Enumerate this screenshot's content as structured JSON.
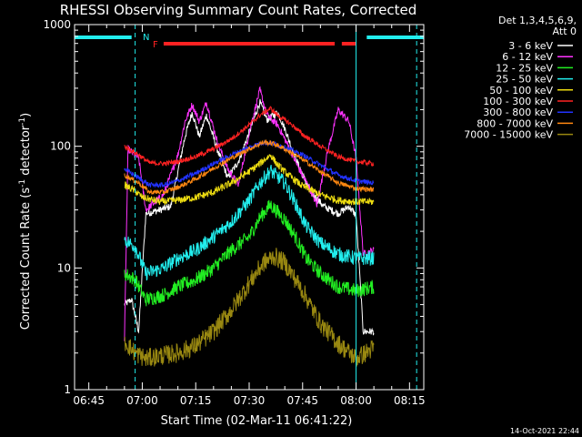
{
  "chart_data": {
    "type": "line",
    "title": "RHESSI Observing Summary Count Rates, Corrected",
    "xlabel": "Start Time (02-Mar-11 06:41:22)",
    "ylabel": "Corrected Count Rate (s⁻¹ detector⁻¹)",
    "ylabel_main": "Corrected Count Rate (s",
    "ylabel_sup1": "-1",
    "ylabel_mid": " detector",
    "ylabel_sup2": "-1",
    "ylabel_end": ")",
    "y_scale": "log",
    "ylim": [
      1,
      1000
    ],
    "xlim": [
      "06:41",
      "08:19"
    ],
    "x_ticks": [
      "06:45",
      "07:00",
      "07:15",
      "07:30",
      "07:45",
      "08:00",
      "08:15"
    ],
    "y_ticks": [
      "1",
      "10",
      "100",
      "1000"
    ],
    "footer": "14-Oct-2021 22:44",
    "legend": {
      "header": [
        "Det 1,3,4,5,6,9,",
        "Att 0"
      ],
      "placement": "right",
      "entries": [
        {
          "label": "3 - 6 keV",
          "color": "#ffffff"
        },
        {
          "label": "6 - 12 keV",
          "color": "#ff33ff"
        },
        {
          "label": "12 - 25 keV",
          "color": "#22ee22"
        },
        {
          "label": "25 - 50 keV",
          "color": "#22eeee"
        },
        {
          "label": "50 - 100 keV",
          "color": "#eedd11"
        },
        {
          "label": "100 - 300 keV",
          "color": "#ff2222"
        },
        {
          "label": "300 - 800 keV",
          "color": "#2233ff"
        },
        {
          "label": "800 - 7000 keV",
          "color": "#ff8811"
        },
        {
          "label": "7000 - 15000 keV",
          "color": "#998811"
        }
      ]
    },
    "annotations": {
      "N": {
        "label": "N",
        "color": "#22eeee"
      },
      "F": {
        "label": "F",
        "color": "#ff2222"
      }
    },
    "night_bars": [
      [
        "06:41",
        "06:57"
      ],
      [
        "08:03",
        "08:19"
      ]
    ],
    "flare_bars": [
      [
        "07:06",
        "07:54"
      ],
      [
        "07:56",
        "08:00"
      ]
    ],
    "night_vlines": [
      "06:41",
      "06:58",
      "08:00",
      "08:17"
    ],
    "series": [
      {
        "name": "3 - 6 keV",
        "color": "#ffffff",
        "noise": 0.03,
        "points": [
          [
            "06:55",
            5
          ],
          [
            "06:57",
            5.5
          ],
          [
            "06:59",
            3
          ],
          [
            "07:01",
            28
          ],
          [
            "07:05",
            30
          ],
          [
            "07:08",
            32
          ],
          [
            "07:12",
            120
          ],
          [
            "07:14",
            190
          ],
          [
            "07:16",
            120
          ],
          [
            "07:18",
            180
          ],
          [
            "07:21",
            95
          ],
          [
            "07:24",
            55
          ],
          [
            "07:27",
            75
          ],
          [
            "07:30",
            130
          ],
          [
            "07:33",
            230
          ],
          [
            "07:35",
            165
          ],
          [
            "07:38",
            190
          ],
          [
            "07:40",
            140
          ],
          [
            "07:43",
            80
          ],
          [
            "07:46",
            50
          ],
          [
            "07:48",
            40
          ],
          [
            "07:51",
            32
          ],
          [
            "07:55",
            28
          ],
          [
            "07:58",
            32
          ],
          [
            "08:00",
            27
          ],
          [
            "08:02",
            3
          ],
          [
            "08:05",
            3
          ]
        ]
      },
      {
        "name": "6 - 12 keV",
        "color": "#ff33ff",
        "noise": 0.03,
        "points": [
          [
            "06:55",
            2.5
          ],
          [
            "06:56",
            95
          ],
          [
            "06:59",
            80
          ],
          [
            "07:01",
            30
          ],
          [
            "07:06",
            40
          ],
          [
            "07:10",
            85
          ],
          [
            "07:12",
            160
          ],
          [
            "07:14",
            220
          ],
          [
            "07:16",
            160
          ],
          [
            "07:18",
            230
          ],
          [
            "07:21",
            110
          ],
          [
            "07:24",
            65
          ],
          [
            "07:27",
            48
          ],
          [
            "07:30",
            130
          ],
          [
            "07:33",
            290
          ],
          [
            "07:35",
            180
          ],
          [
            "07:38",
            150
          ],
          [
            "07:41",
            100
          ],
          [
            "07:44",
            65
          ],
          [
            "07:47",
            45
          ],
          [
            "07:49",
            33
          ],
          [
            "07:52",
            90
          ],
          [
            "07:55",
            200
          ],
          [
            "07:58",
            160
          ],
          [
            "08:00",
            80
          ],
          [
            "08:02",
            13
          ],
          [
            "08:05",
            14
          ]
        ]
      },
      {
        "name": "12 - 25 keV",
        "color": "#22ee22",
        "noise": 0.06,
        "points": [
          [
            "06:55",
            9
          ],
          [
            "06:58",
            8
          ],
          [
            "07:01",
            5.5
          ],
          [
            "07:06",
            6
          ],
          [
            "07:10",
            7
          ],
          [
            "07:15",
            8
          ],
          [
            "07:20",
            10
          ],
          [
            "07:25",
            14
          ],
          [
            "07:30",
            18
          ],
          [
            "07:33",
            26
          ],
          [
            "07:36",
            33
          ],
          [
            "07:40",
            25
          ],
          [
            "07:43",
            18
          ],
          [
            "07:46",
            12
          ],
          [
            "07:50",
            9
          ],
          [
            "07:55",
            7
          ],
          [
            "08:00",
            6.5
          ],
          [
            "08:05",
            7
          ]
        ]
      },
      {
        "name": "25 - 50 keV",
        "color": "#22eeee",
        "noise": 0.06,
        "points": [
          [
            "06:55",
            17
          ],
          [
            "06:58",
            15
          ],
          [
            "07:01",
            9
          ],
          [
            "07:06",
            10
          ],
          [
            "07:10",
            12
          ],
          [
            "07:15",
            14
          ],
          [
            "07:20",
            18
          ],
          [
            "07:25",
            24
          ],
          [
            "07:30",
            36
          ],
          [
            "07:33",
            50
          ],
          [
            "07:36",
            63
          ],
          [
            "07:40",
            50
          ],
          [
            "07:43",
            34
          ],
          [
            "07:46",
            22
          ],
          [
            "07:50",
            16
          ],
          [
            "07:55",
            13
          ],
          [
            "08:00",
            12
          ],
          [
            "08:05",
            12
          ]
        ]
      },
      {
        "name": "50 - 100 keV",
        "color": "#eedd11",
        "noise": 0.03,
        "points": [
          [
            "06:55",
            48
          ],
          [
            "06:58",
            43
          ],
          [
            "07:00",
            38
          ],
          [
            "07:05",
            35
          ],
          [
            "07:10",
            36
          ],
          [
            "07:15",
            38
          ],
          [
            "07:20",
            42
          ],
          [
            "07:25",
            50
          ],
          [
            "07:30",
            62
          ],
          [
            "07:33",
            72
          ],
          [
            "07:36",
            85
          ],
          [
            "07:38",
            70
          ],
          [
            "07:41",
            58
          ],
          [
            "07:45",
            47
          ],
          [
            "07:50",
            40
          ],
          [
            "07:55",
            36
          ],
          [
            "08:00",
            35
          ],
          [
            "08:05",
            35
          ]
        ]
      },
      {
        "name": "100 - 300 keV",
        "color": "#ff2222",
        "noise": 0.02,
        "points": [
          [
            "06:55",
            100
          ],
          [
            "06:59",
            85
          ],
          [
            "07:02",
            73
          ],
          [
            "07:06",
            72
          ],
          [
            "07:10",
            75
          ],
          [
            "07:15",
            82
          ],
          [
            "07:20",
            95
          ],
          [
            "07:25",
            115
          ],
          [
            "07:30",
            150
          ],
          [
            "07:33",
            180
          ],
          [
            "07:36",
            205
          ],
          [
            "07:38",
            180
          ],
          [
            "07:42",
            150
          ],
          [
            "07:45",
            125
          ],
          [
            "07:50",
            100
          ],
          [
            "07:55",
            82
          ],
          [
            "08:00",
            75
          ],
          [
            "08:05",
            72
          ]
        ]
      },
      {
        "name": "300 - 800 keV",
        "color": "#2233ff",
        "noise": 0.02,
        "points": [
          [
            "06:55",
            65
          ],
          [
            "06:59",
            55
          ],
          [
            "07:02",
            48
          ],
          [
            "07:06",
            48
          ],
          [
            "07:10",
            52
          ],
          [
            "07:15",
            60
          ],
          [
            "07:20",
            72
          ],
          [
            "07:25",
            85
          ],
          [
            "07:30",
            98
          ],
          [
            "07:34",
            108
          ],
          [
            "07:37",
            105
          ],
          [
            "07:40",
            98
          ],
          [
            "07:45",
            85
          ],
          [
            "07:50",
            70
          ],
          [
            "07:55",
            58
          ],
          [
            "08:00",
            52
          ],
          [
            "08:05",
            50
          ]
        ]
      },
      {
        "name": "800 - 7000 keV",
        "color": "#ff8811",
        "noise": 0.02,
        "points": [
          [
            "06:55",
            58
          ],
          [
            "06:59",
            50
          ],
          [
            "07:02",
            42
          ],
          [
            "07:06",
            42
          ],
          [
            "07:10",
            46
          ],
          [
            "07:15",
            54
          ],
          [
            "07:20",
            66
          ],
          [
            "07:25",
            80
          ],
          [
            "07:30",
            95
          ],
          [
            "07:34",
            108
          ],
          [
            "07:37",
            105
          ],
          [
            "07:40",
            95
          ],
          [
            "07:45",
            78
          ],
          [
            "07:50",
            62
          ],
          [
            "07:55",
            50
          ],
          [
            "08:00",
            45
          ],
          [
            "08:05",
            44
          ]
        ]
      },
      {
        "name": "7000 - 15000 keV",
        "color": "#998811",
        "noise": 0.08,
        "points": [
          [
            "06:55",
            2.5
          ],
          [
            "06:58",
            2.0
          ],
          [
            "07:01",
            1.8
          ],
          [
            "07:05",
            1.9
          ],
          [
            "07:10",
            2.0
          ],
          [
            "07:15",
            2.3
          ],
          [
            "07:20",
            3.0
          ],
          [
            "07:25",
            4.5
          ],
          [
            "07:30",
            7.5
          ],
          [
            "07:34",
            11
          ],
          [
            "07:37",
            12.5
          ],
          [
            "07:40",
            11
          ],
          [
            "07:45",
            6.5
          ],
          [
            "07:50",
            3.5
          ],
          [
            "07:55",
            2.4
          ],
          [
            "08:00",
            1.8
          ],
          [
            "08:05",
            2.2
          ]
        ]
      }
    ]
  }
}
